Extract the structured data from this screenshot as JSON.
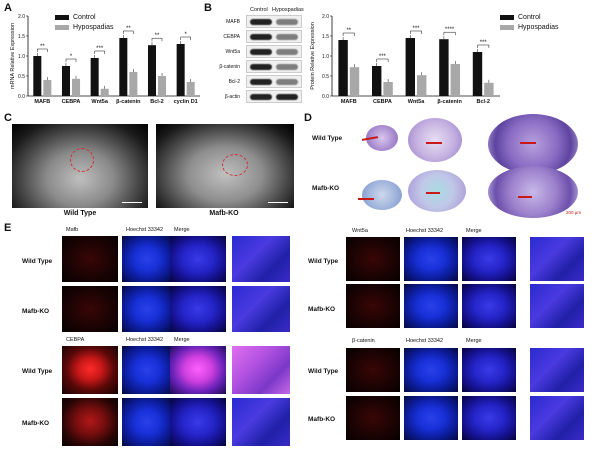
{
  "panels": {
    "A": "A",
    "B": "B",
    "C": "C",
    "D": "D",
    "E": "E"
  },
  "legend": {
    "control": "Control",
    "hypospadias": "Hypospadias"
  },
  "colors": {
    "control": "#111111",
    "hypospadias": "#a8a8a8",
    "fluor_red": "#c81818",
    "fluor_blue": "#1830d8",
    "he_purple": "#a88ad0"
  },
  "chart_data": [
    {
      "type": "bar",
      "panel": "A",
      "ylabel": "mRNA Relative Expression",
      "ylim": [
        0,
        2.0
      ],
      "yticks": [
        "0.0",
        "0.5",
        "1.0",
        "1.5",
        "2.0"
      ],
      "categories": [
        "MAFB",
        "CEBPA",
        "Wnt5a",
        "β-catenin",
        "Bcl-2",
        "cyclin D1"
      ],
      "series": [
        {
          "name": "Control",
          "values": [
            1.0,
            0.75,
            0.95,
            1.45,
            1.27,
            1.3
          ]
        },
        {
          "name": "Hypospadias",
          "values": [
            0.4,
            0.43,
            0.18,
            0.6,
            0.5,
            0.35
          ]
        }
      ],
      "significance": [
        "**",
        "*",
        "***",
        "**",
        "**",
        "*"
      ]
    },
    {
      "type": "bar",
      "panel": "B",
      "ylabel": "Protein Relative Expression",
      "ylim": [
        0,
        2.0
      ],
      "yticks": [
        "0.0",
        "0.5",
        "1.0",
        "1.5",
        "2.0"
      ],
      "categories": [
        "MAFB",
        "CEBPA",
        "Wnt5a",
        "β-catenin",
        "Bcl-2"
      ],
      "series": [
        {
          "name": "Control",
          "values": [
            1.4,
            0.75,
            1.45,
            1.42,
            1.1
          ]
        },
        {
          "name": "Hypospadias",
          "values": [
            0.72,
            0.35,
            0.52,
            0.8,
            0.33
          ]
        }
      ],
      "significance": [
        "**",
        "***",
        "***",
        "****",
        "***"
      ]
    }
  ],
  "blot": {
    "columns": [
      "Control",
      "Hypospadias"
    ],
    "rows": [
      "MAFB",
      "CEBPA",
      "Wnt5a",
      "β-catenin",
      "Bcl-2",
      "β-actin"
    ]
  },
  "panelC": {
    "labels": [
      "Wild Type",
      "Mafb-KO"
    ]
  },
  "panelD": {
    "rows": [
      "Wild Type",
      "Mafb-KO"
    ],
    "scale": "200 μm"
  },
  "panelE": {
    "left_top_headers": [
      "Mafb",
      "Hoechst 33342",
      "Merge"
    ],
    "left_bottom_headers": [
      "CEBPA",
      "Hoechst 33342",
      "Merge"
    ],
    "right_top_headers": [
      "Wnt5a",
      "Hoechst 33342",
      "Merge"
    ],
    "right_bottom_headers": [
      "β-catenin",
      "Hoechst 33342",
      "Merge"
    ],
    "rows": [
      "Wild Type",
      "Mafb-KO"
    ]
  }
}
